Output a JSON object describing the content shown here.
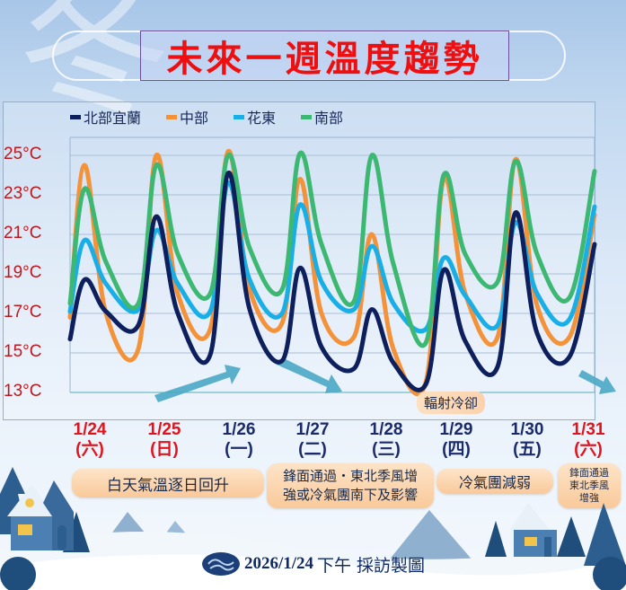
{
  "title": "未來一週溫度趨勢",
  "background_glyph": "冬",
  "legend": [
    {
      "label": "北部宜蘭",
      "color": "#0d1f5c"
    },
    {
      "label": "中部",
      "color": "#f4923a"
    },
    {
      "label": "花東",
      "color": "#1aaee6"
    },
    {
      "label": "南部",
      "color": "#3db873"
    }
  ],
  "y_axis": {
    "labels": [
      "25°C",
      "23°C",
      "21°C",
      "19°C",
      "17°C",
      "15°C",
      "13°C"
    ],
    "label_color": "#c0161c"
  },
  "dates": [
    {
      "date": "1/24",
      "weekday": "(六)",
      "color": "#e0141c"
    },
    {
      "date": "1/25",
      "weekday": "(日)",
      "color": "#e0141c"
    },
    {
      "date": "1/26",
      "weekday": "(一)",
      "color": "#1a2a6a"
    },
    {
      "date": "1/27",
      "weekday": "(二)",
      "color": "#1a2a6a"
    },
    {
      "date": "1/28",
      "weekday": "(三)",
      "color": "#1a2a6a"
    },
    {
      "date": "1/29",
      "weekday": "(四)",
      "color": "#1a2a6a"
    },
    {
      "date": "1/30",
      "weekday": "(五)",
      "color": "#1a2a6a"
    },
    {
      "date": "1/31",
      "weekday": "(六)",
      "color": "#e0141c"
    }
  ],
  "annotations": [
    {
      "text": "白天氣溫逐日回升"
    },
    {
      "line1": "鋒面通過・東北季風增",
      "line2": "強或冷氣團南下及影響"
    },
    {
      "text": "冷氣團減弱"
    },
    {
      "line1": "鋒面通過",
      "line2": "東北季風",
      "line3": "增強"
    }
  ],
  "chart_note": "輻射冷卻",
  "footer": {
    "date": "2026/1/24",
    "text": "下午 採訪製圖"
  },
  "chart_data": {
    "type": "line",
    "title": "未來一週溫度趨勢",
    "xlabel": "",
    "ylabel": "°C",
    "ylim": [
      13,
      25.5
    ],
    "y_ticks": [
      25,
      23,
      21,
      19,
      17,
      15,
      13
    ],
    "grid": true,
    "legend_position": "top",
    "categories": [
      "1/24(六)",
      "1/25(日)",
      "1/26(一)",
      "1/27(二)",
      "1/28(三)",
      "1/29(四)",
      "1/30(五)",
      "1/31(六)"
    ],
    "x_points": [
      0,
      0.2,
      0.5,
      0.95,
      1.2,
      1.5,
      1.95,
      2.2,
      2.5,
      2.95,
      3.2,
      3.5,
      3.95,
      4.2,
      4.5,
      4.95,
      5.2,
      5.5,
      5.95,
      6.2,
      6.5,
      6.95,
      7.3
    ],
    "series": [
      {
        "name": "北部宜蘭",
        "color": "#0d1f5c",
        "values": [
          15.7,
          18.7,
          17.1,
          16.4,
          21.9,
          17.0,
          14.9,
          24.1,
          17.2,
          14.6,
          19.3,
          15.3,
          14.2,
          17.2,
          14.5,
          13.4,
          19.2,
          15.6,
          14.3,
          22.1,
          16.0,
          14.8,
          20.5
        ]
      },
      {
        "name": "中部",
        "color": "#f4923a",
        "values": [
          16.8,
          24.5,
          17.0,
          15.2,
          25.0,
          18.0,
          16.2,
          25.2,
          18.2,
          16.5,
          23.8,
          17.0,
          15.8,
          21.0,
          15.2,
          13.5,
          23.8,
          18.0,
          15.8,
          24.8,
          17.4,
          15.8,
          22.0
        ]
      },
      {
        "name": "花東",
        "color": "#1aaee6",
        "values": [
          17.1,
          20.7,
          18.5,
          17.2,
          21.2,
          18.5,
          17.1,
          23.6,
          18.7,
          17.0,
          22.5,
          18.6,
          17.2,
          20.4,
          17.5,
          16.2,
          19.8,
          17.9,
          16.4,
          21.6,
          18.0,
          16.7,
          22.4
        ]
      },
      {
        "name": "南部",
        "color": "#3db873",
        "values": [
          17.5,
          23.3,
          19.6,
          17.5,
          24.5,
          20.0,
          18.0,
          25.0,
          20.3,
          18.2,
          25.1,
          20.5,
          17.6,
          25.0,
          19.5,
          15.5,
          24.0,
          20.0,
          18.6,
          24.7,
          20.0,
          17.8,
          24.2
        ]
      }
    ]
  }
}
